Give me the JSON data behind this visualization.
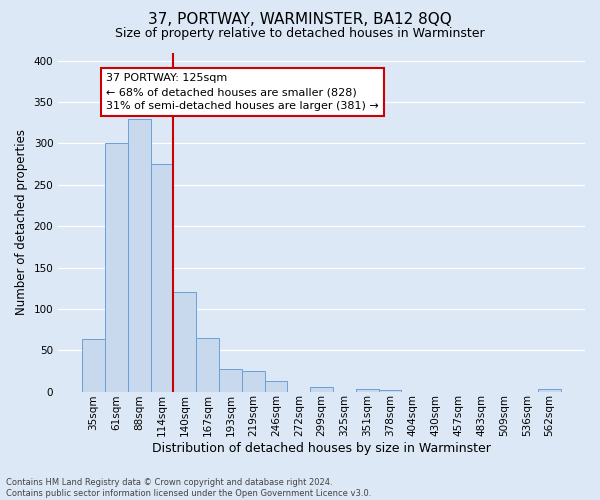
{
  "title": "37, PORTWAY, WARMINSTER, BA12 8QQ",
  "subtitle": "Size of property relative to detached houses in Warminster",
  "xlabel": "Distribution of detached houses by size in Warminster",
  "ylabel": "Number of detached properties",
  "bin_labels": [
    "35sqm",
    "61sqm",
    "88sqm",
    "114sqm",
    "140sqm",
    "167sqm",
    "193sqm",
    "219sqm",
    "246sqm",
    "272sqm",
    "299sqm",
    "325sqm",
    "351sqm",
    "378sqm",
    "404sqm",
    "430sqm",
    "457sqm",
    "483sqm",
    "509sqm",
    "536sqm",
    "562sqm"
  ],
  "bar_heights": [
    63,
    300,
    330,
    275,
    120,
    65,
    27,
    25,
    13,
    0,
    5,
    0,
    3,
    2,
    0,
    0,
    0,
    0,
    0,
    0,
    3
  ],
  "bar_color": "#c9d9ed",
  "bar_edge_color": "#6a9fd8",
  "annotation_text": "37 PORTWAY: 125sqm\n← 68% of detached houses are smaller (828)\n31% of semi-detached houses are larger (381) →",
  "annotation_box_color": "white",
  "annotation_box_edge_color": "#cc0000",
  "red_line_color": "#cc0000",
  "red_line_x": 3.5,
  "ylim": [
    0,
    410
  ],
  "yticks": [
    0,
    50,
    100,
    150,
    200,
    250,
    300,
    350,
    400
  ],
  "background_color": "#dce8f5",
  "grid_color": "white",
  "footer_line1": "Contains HM Land Registry data © Crown copyright and database right 2024.",
  "footer_line2": "Contains public sector information licensed under the Open Government Licence v3.0.",
  "title_fontsize": 11,
  "subtitle_fontsize": 9,
  "xlabel_fontsize": 9,
  "ylabel_fontsize": 8.5,
  "tick_fontsize": 7.5,
  "annot_fontsize": 8,
  "footer_fontsize": 6
}
